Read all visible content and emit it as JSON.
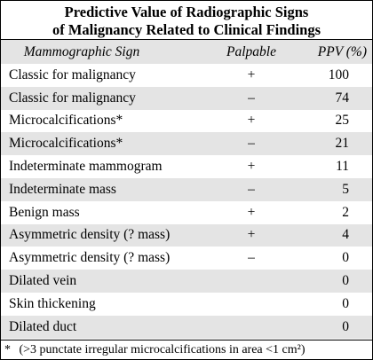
{
  "title": {
    "line1": "Predictive Value of Radiographic Signs",
    "line2": "of Malignancy Related to Clinical Findings"
  },
  "table": {
    "header": [
      "Mammographic Sign",
      "Palpable",
      "PPV (%)"
    ],
    "rows": [
      [
        "Classic for malignancy",
        "+",
        "100"
      ],
      [
        "Classic for malignancy",
        "–",
        "74"
      ],
      [
        "Microcalcifications*",
        "+",
        "25"
      ],
      [
        "Microcalcifications*",
        "–",
        "21"
      ],
      [
        "Indeterminate mammogram",
        "+",
        "11"
      ],
      [
        "Indeterminate mass",
        "–",
        "5"
      ],
      [
        "Benign mass",
        "+",
        "2"
      ],
      [
        "Asymmetric density (? mass)",
        "+",
        "4"
      ],
      [
        "Asymmetric density (? mass)",
        "–",
        "0"
      ],
      [
        "Dilated vein",
        "",
        "0"
      ],
      [
        "Skin thickening",
        "",
        "0"
      ],
      [
        "Dilated duct",
        "",
        "0"
      ]
    ]
  },
  "footnote": {
    "mark": "*",
    "text": "(>3 punctate irregular microcalcifications in area <1 cm²)"
  }
}
